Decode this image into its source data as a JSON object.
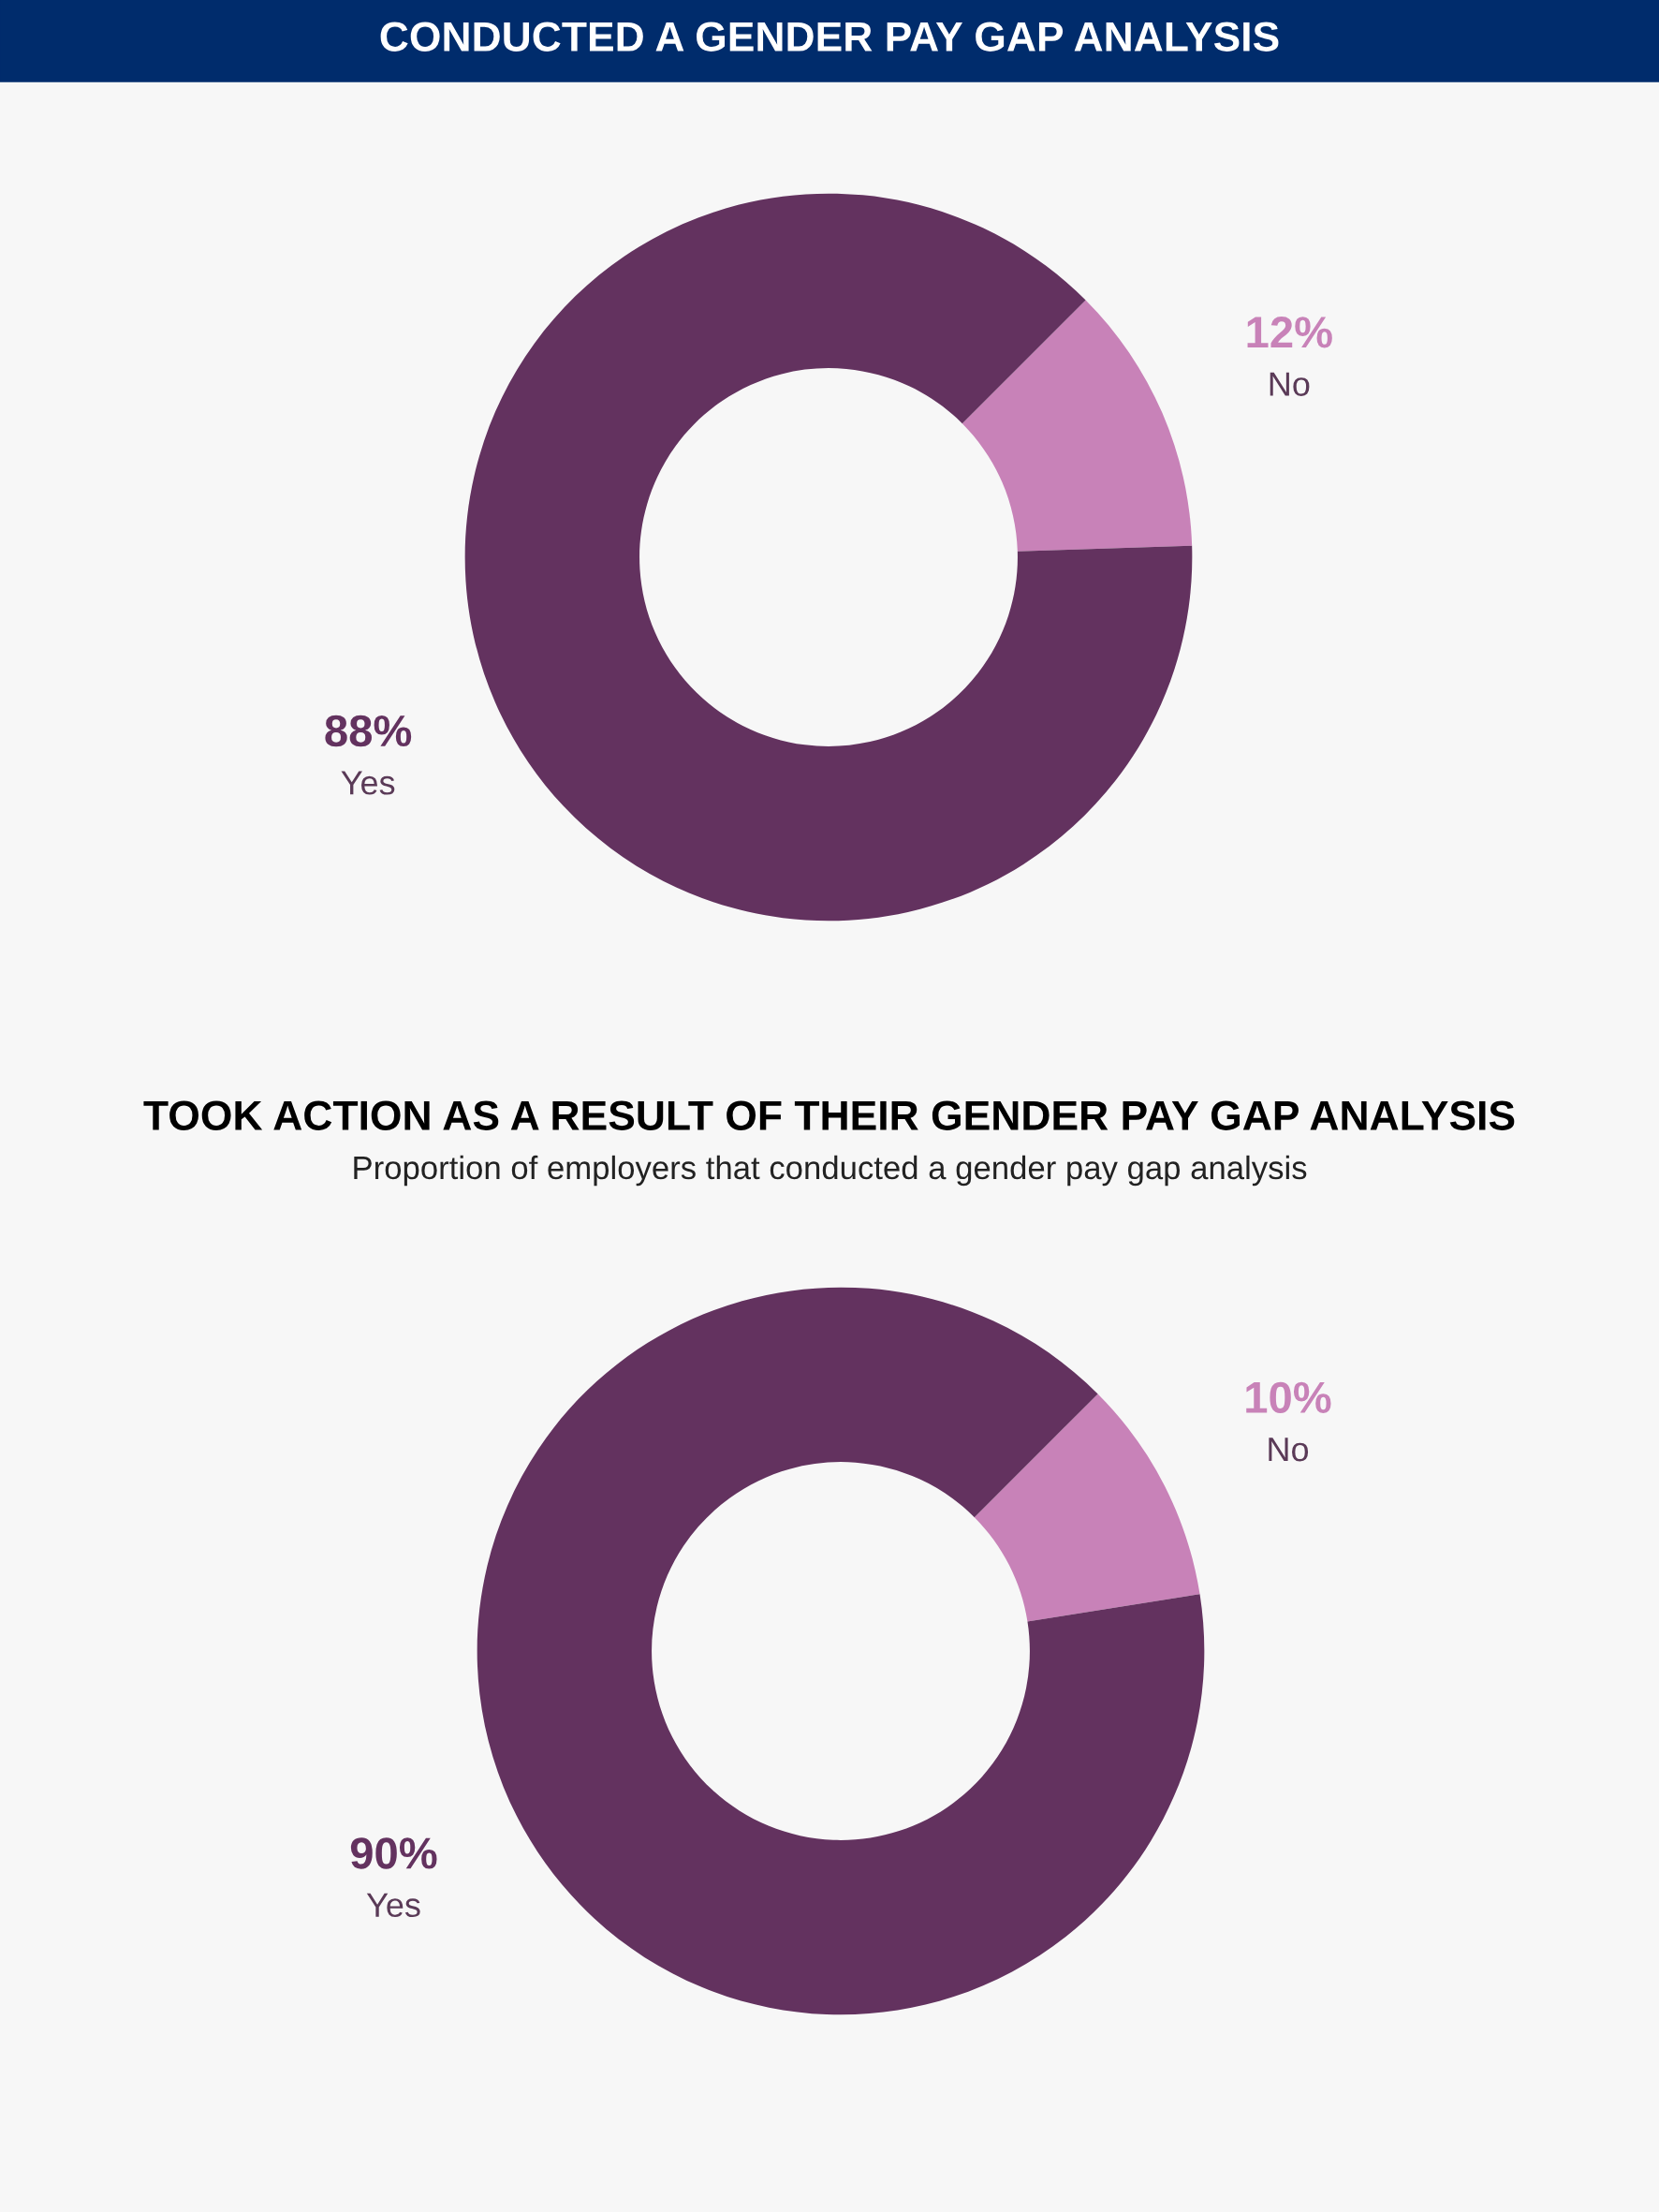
{
  "chart_data": [
    {
      "type": "donut",
      "title": "CONDUCTED A GENDER PAY GAP ANALYSIS",
      "categories": [
        "No",
        "Yes"
      ],
      "values": [
        12,
        88
      ],
      "value_labels": [
        "12%",
        "88%"
      ],
      "colors": [
        "#c882b8",
        "#63325f"
      ],
      "legend": false
    },
    {
      "type": "donut",
      "title": "TOOK ACTION AS A RESULT OF THEIR GENDER PAY GAP ANALYSIS",
      "subtitle": "Proportion of employers that conducted a gender pay gap analysis",
      "categories": [
        "No",
        "Yes"
      ],
      "values": [
        10,
        90
      ],
      "value_labels": [
        "10%",
        "90%"
      ],
      "colors": [
        "#c882b8",
        "#63325f"
      ],
      "legend": false
    }
  ]
}
